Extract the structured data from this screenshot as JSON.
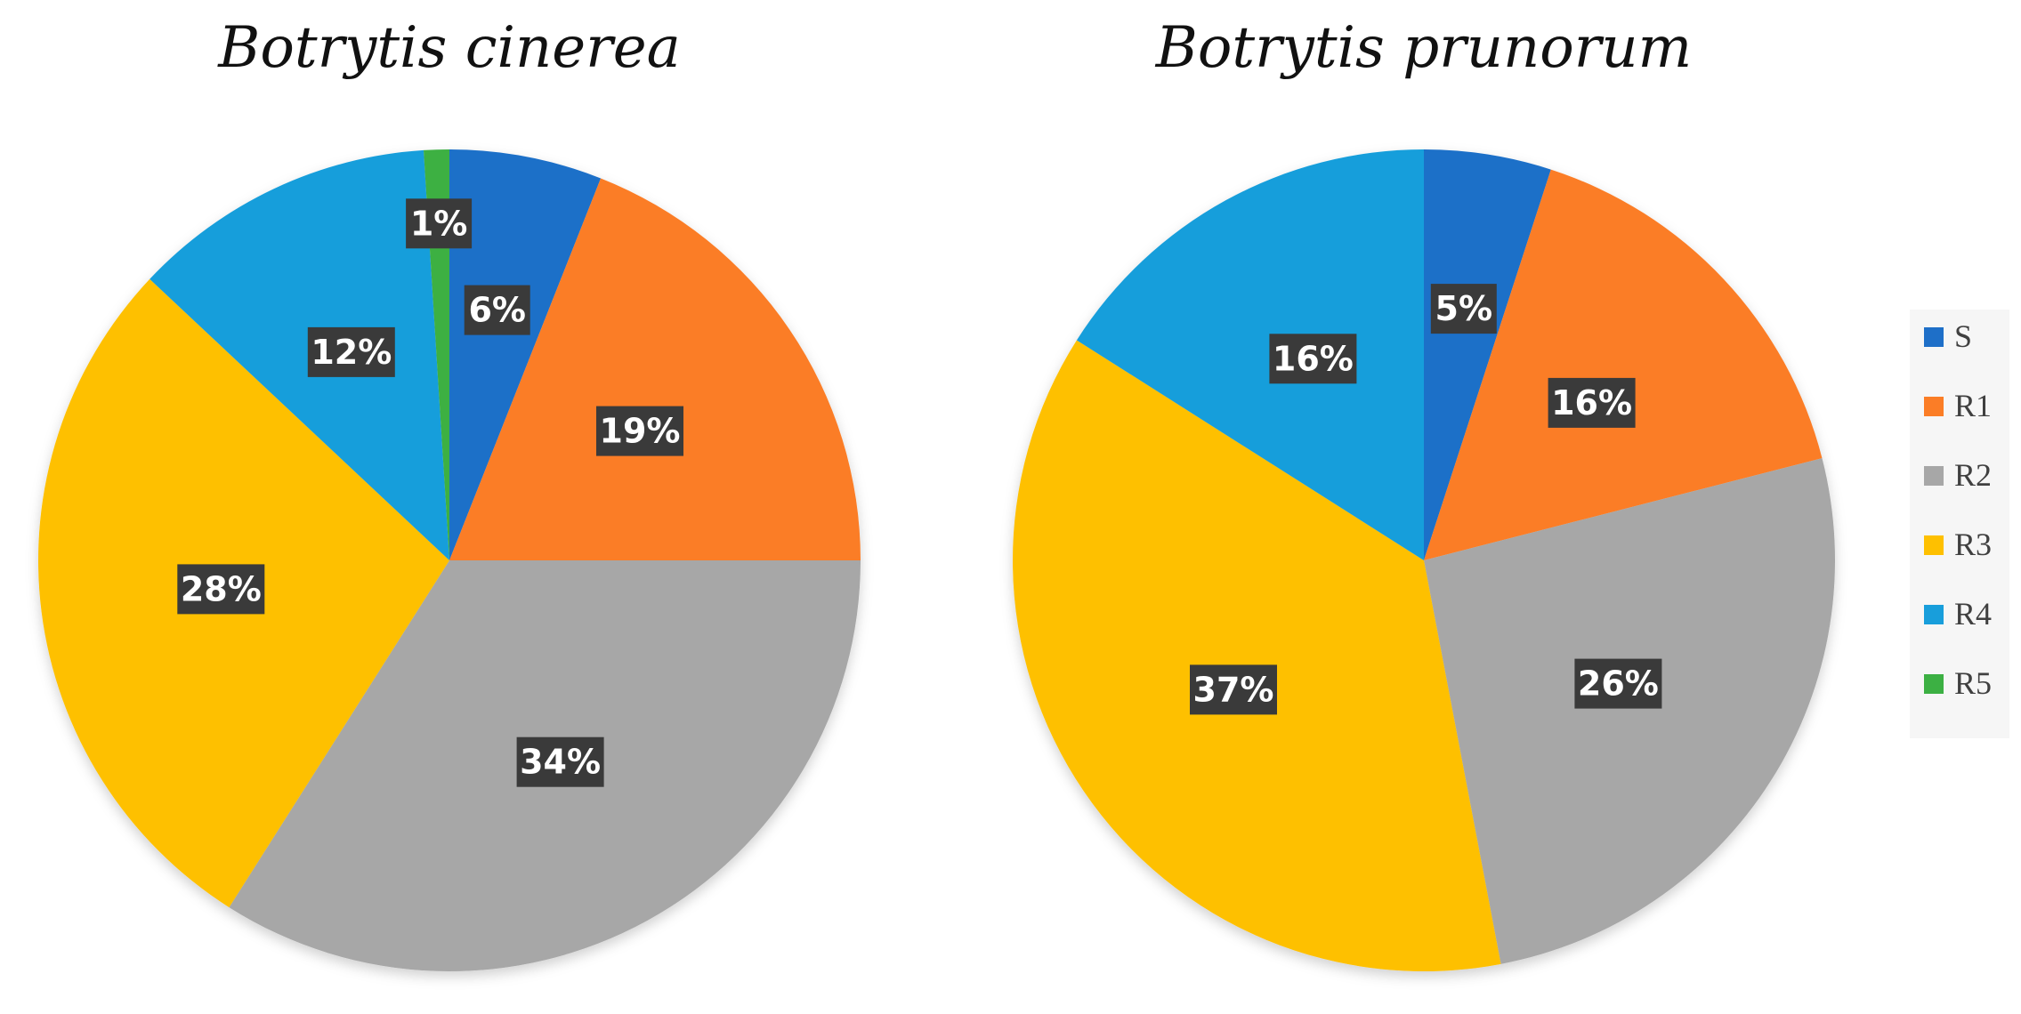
{
  "chart_data": [
    {
      "type": "pie",
      "title": "Botrytis cinerea",
      "categories": [
        "S",
        "R1",
        "R2",
        "R3",
        "R4",
        "R5"
      ],
      "values": [
        6,
        19,
        34,
        28,
        12,
        1
      ],
      "labels": [
        "6%",
        "19%",
        "34%",
        "28%",
        "12%",
        "1%"
      ]
    },
    {
      "type": "pie",
      "title": "Botrytis prunorum",
      "categories": [
        "S",
        "R1",
        "R2",
        "R3",
        "R4"
      ],
      "values": [
        5,
        16,
        26,
        37,
        16
      ],
      "labels": [
        "5%",
        "16%",
        "26%",
        "37%",
        "16%"
      ]
    }
  ],
  "legend": {
    "position": "right",
    "items": [
      {
        "label": "S",
        "color": "#1e6fc8"
      },
      {
        "label": "R1",
        "color": "#fb7d26"
      },
      {
        "label": "R2",
        "color": "#a7a7a7"
      },
      {
        "label": "R3",
        "color": "#fec000"
      },
      {
        "label": "R4",
        "color": "#189edb"
      },
      {
        "label": "R5",
        "color": "#3cb043"
      }
    ]
  },
  "colors": {
    "S": "#1e6fc8",
    "R1": "#fb7d26",
    "R2": "#a7a7a7",
    "R3": "#fec000",
    "R4": "#189edb",
    "R5": "#3cb043",
    "label_box": "#3a3a3a"
  }
}
